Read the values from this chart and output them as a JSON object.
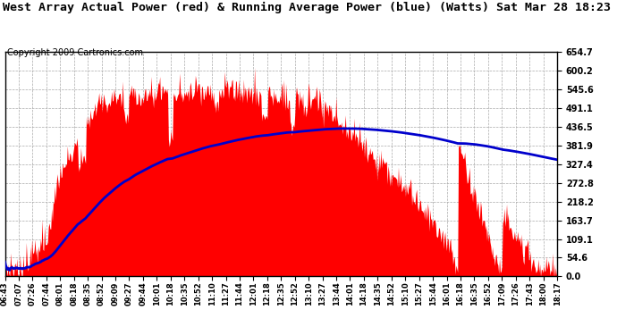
{
  "title": "West Array Actual Power (red) & Running Average Power (blue) (Watts) Sat Mar 28 18:23",
  "copyright": "Copyright 2009 Cartronics.com",
  "title_fontsize": 9.5,
  "copyright_fontsize": 7,
  "background_color": "#ffffff",
  "bar_color": "#ff0000",
  "avg_color": "#0000cc",
  "grid_color": "#aaaaaa",
  "yticks": [
    0.0,
    54.6,
    109.1,
    163.7,
    218.2,
    272.8,
    327.4,
    381.9,
    436.5,
    491.1,
    545.6,
    600.2,
    654.7
  ],
  "ylim": [
    0.0,
    654.7
  ],
  "xtick_labels": [
    "06:43",
    "07:07",
    "07:26",
    "07:44",
    "08:01",
    "08:18",
    "08:35",
    "08:52",
    "09:09",
    "09:27",
    "09:44",
    "10:01",
    "10:18",
    "10:35",
    "10:52",
    "11:10",
    "11:27",
    "11:44",
    "12:01",
    "12:18",
    "12:35",
    "12:52",
    "13:10",
    "13:27",
    "13:44",
    "14:01",
    "14:18",
    "14:35",
    "14:52",
    "15:10",
    "15:27",
    "15:44",
    "16:01",
    "16:18",
    "16:35",
    "16:52",
    "17:09",
    "17:26",
    "17:43",
    "18:00",
    "18:17"
  ],
  "n_points": 700,
  "seed": 7
}
